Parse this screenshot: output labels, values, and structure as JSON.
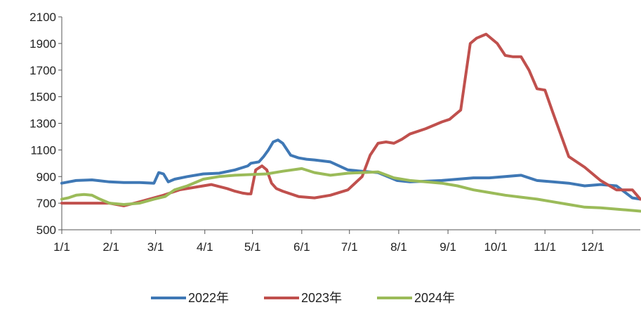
{
  "chart_data": {
    "type": "line",
    "ylim": [
      500,
      2100
    ],
    "yticks": [
      "500",
      "700",
      "900",
      "1100",
      "1300",
      "1500",
      "1700",
      "1900",
      "2100"
    ],
    "xticks": [
      "1/1",
      "2/1",
      "3/1",
      "4/1",
      "5/1",
      "6/1",
      "7/1",
      "8/1",
      "9/1",
      "10/1",
      "11/1",
      "12/1"
    ],
    "grid": false,
    "legend_position": "bottom",
    "series": [
      {
        "name": "2022年",
        "color": "#3F78B5",
        "x": [
          1,
          10,
          20,
          31,
          40,
          50,
          59,
          62,
          65,
          68,
          72,
          80,
          90,
          100,
          110,
          118,
          120,
          125,
          128,
          131,
          134,
          137,
          140,
          145,
          150,
          155,
          160,
          170,
          181,
          190,
          200,
          212,
          220,
          230,
          240,
          250,
          260,
          270,
          280,
          290,
          300,
          310,
          320,
          330,
          340,
          350,
          360,
          365
        ],
        "y": [
          850,
          870,
          875,
          860,
          855,
          855,
          850,
          930,
          920,
          860,
          880,
          900,
          920,
          925,
          950,
          980,
          1000,
          1010,
          1050,
          1100,
          1160,
          1175,
          1150,
          1060,
          1040,
          1030,
          1025,
          1010,
          950,
          940,
          930,
          870,
          860,
          865,
          870,
          880,
          890,
          890,
          900,
          910,
          870,
          860,
          850,
          830,
          840,
          830,
          740,
          730
        ]
      },
      {
        "name": "2023年",
        "color": "#C0504D",
        "x": [
          1,
          10,
          20,
          31,
          40,
          50,
          59,
          65,
          70,
          75,
          85,
          95,
          105,
          110,
          115,
          118,
          120,
          123,
          127,
          130,
          133,
          136,
          140,
          150,
          160,
          170,
          181,
          190,
          195,
          200,
          205,
          210,
          215,
          220,
          230,
          240,
          245,
          248,
          252,
          255,
          258,
          262,
          266,
          268,
          270,
          275,
          280,
          285,
          290,
          295,
          300,
          305,
          310,
          320,
          330,
          340,
          350,
          360,
          365
        ],
        "y": [
          700,
          700,
          700,
          700,
          680,
          710,
          740,
          760,
          780,
          800,
          820,
          840,
          810,
          790,
          775,
          770,
          770,
          950,
          980,
          950,
          850,
          810,
          790,
          750,
          740,
          760,
          800,
          900,
          1060,
          1150,
          1160,
          1150,
          1180,
          1220,
          1260,
          1310,
          1330,
          1360,
          1400,
          1650,
          1900,
          1940,
          1960,
          1970,
          1950,
          1900,
          1810,
          1800,
          1800,
          1700,
          1560,
          1550,
          1380,
          1050,
          970,
          870,
          800,
          800,
          730
        ]
      },
      {
        "name": "2024年",
        "color": "#9BBB59",
        "x": [
          1,
          5,
          10,
          15,
          20,
          25,
          31,
          40,
          50,
          59,
          66,
          72,
          80,
          90,
          100,
          110,
          120,
          130,
          140,
          152,
          160,
          170,
          181,
          190,
          200,
          210,
          220,
          230,
          240,
          250,
          260,
          270,
          280,
          290,
          300,
          310,
          320,
          330,
          340,
          350,
          360,
          365
        ],
        "y": [
          730,
          740,
          760,
          765,
          760,
          730,
          700,
          690,
          700,
          730,
          750,
          800,
          830,
          880,
          900,
          910,
          915,
          920,
          940,
          960,
          930,
          910,
          925,
          930,
          935,
          890,
          870,
          860,
          850,
          830,
          800,
          780,
          760,
          745,
          730,
          710,
          690,
          670,
          665,
          655,
          645,
          640
        ]
      }
    ]
  }
}
